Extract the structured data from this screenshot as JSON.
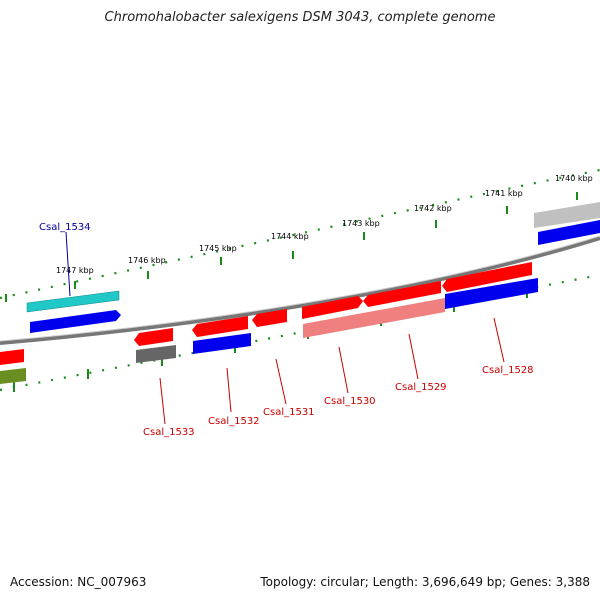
{
  "title": "Chromohalobacter salexigens DSM 3043, complete genome",
  "footer": {
    "accession": "Accession: NC_007963",
    "summary": "Topology: circular; Length: 3,696,649 bp; Genes: 3,388"
  },
  "colors": {
    "red": "#ff0000",
    "pink": "#f08080",
    "blue": "#0000ee",
    "cyan": "#20c8c8",
    "gray": "#666666",
    "olive": "#6b8e23",
    "tick_green": "#1a8a1a",
    "backbone": "#777777",
    "label_red": "#cc0000",
    "label_blue": "#000099"
  },
  "kbp_labels": [
    "1747 kbp",
    "1746 kbp",
    "1745 kbp",
    "1744 kbp",
    "1743 kbp",
    "1742 kbp",
    "1741 kbp",
    "1740 kbp"
  ],
  "gene_labels": [
    {
      "name": "Csal_1534",
      "color": "blue"
    },
    {
      "name": "Csal_1533",
      "color": "red"
    },
    {
      "name": "Csal_1532",
      "color": "red"
    },
    {
      "name": "Csal_1531",
      "color": "red"
    },
    {
      "name": "Csal_1530",
      "color": "red"
    },
    {
      "name": "Csal_1529",
      "color": "red"
    },
    {
      "name": "Csal_1528",
      "color": "red"
    }
  ]
}
